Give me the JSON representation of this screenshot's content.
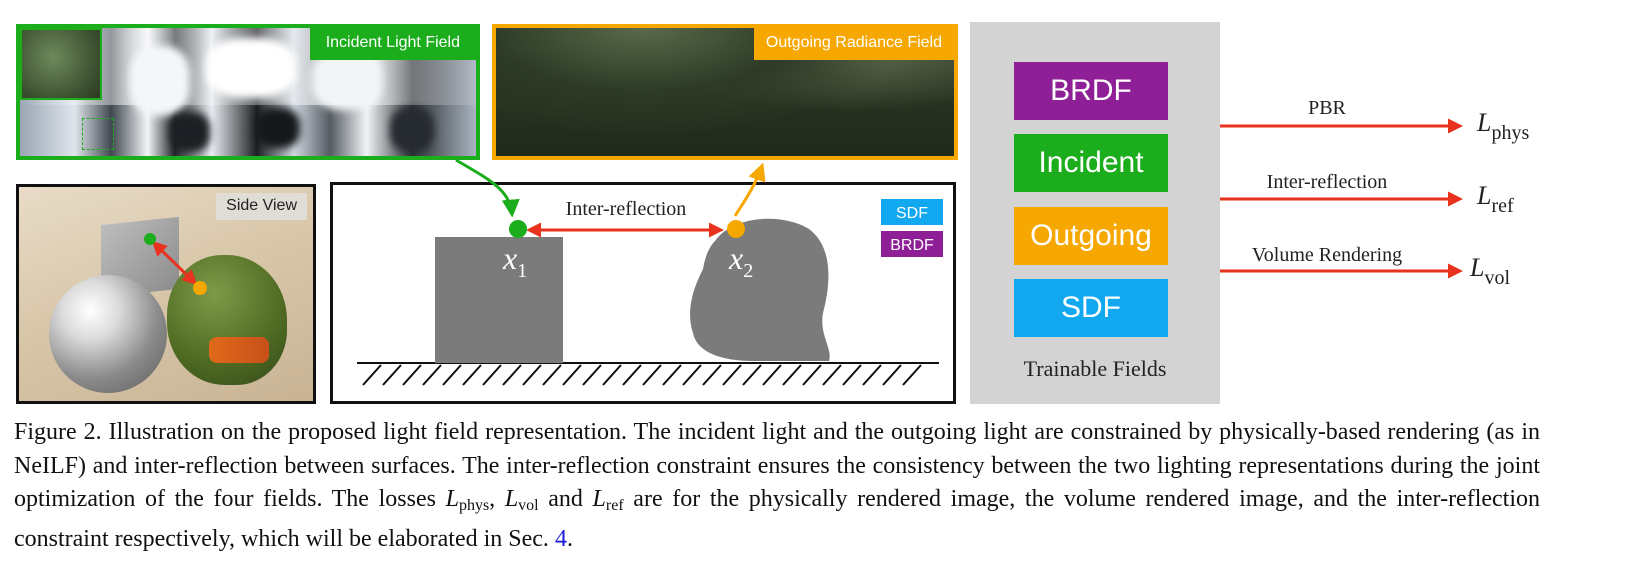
{
  "panels": {
    "incident": {
      "label": "Incident Light Field",
      "color": "#1cad1c"
    },
    "outgoing": {
      "label": "Outgoing Radiance Field",
      "color": "#f6a700"
    },
    "side_view": {
      "label": "Side View"
    }
  },
  "schematic": {
    "inter_reflection_label": "Inter-reflection",
    "x1": {
      "var": "x",
      "sub": "1"
    },
    "x2": {
      "var": "x",
      "sub": "2"
    },
    "legend": [
      {
        "label": "SDF",
        "color": "#12a8f0"
      },
      {
        "label": "BRDF",
        "color": "#8e1f96"
      }
    ]
  },
  "fields": {
    "boxes": [
      {
        "label": "BRDF",
        "color": "#8e1f96"
      },
      {
        "label": "Incident",
        "color": "#1cad1c"
      },
      {
        "label": "Outgoing",
        "color": "#f6a700"
      },
      {
        "label": "SDF",
        "color": "#12a8f0"
      }
    ],
    "caption": "Trainable Fields"
  },
  "losses": [
    {
      "edge_label": "PBR",
      "symbol": "L",
      "sub": "phys"
    },
    {
      "edge_label": "Inter-reflection",
      "symbol": "L",
      "sub": "ref"
    },
    {
      "edge_label": "Volume Rendering",
      "symbol": "L",
      "sub": "vol"
    }
  ],
  "arrow_color": "#e8321e",
  "caption": {
    "part1": "Figure 2. Illustration on the proposed light field representation.  The incident light and the outgoing light are constrained by physically-based rendering (as in NeILF) and inter-reflection between surfaces.  The inter-reflection constraint ensures the consistency between the two lighting representations during the joint optimization of the four fields. The losses ",
    "l_phys": "L",
    "l_phys_sub": "phys",
    "sep1": ", ",
    "l_vol": "L",
    "l_vol_sub": "vol",
    "sep2": " and ",
    "l_ref": "L",
    "l_ref_sub": "ref",
    "part2": " are for the physically rendered image, the volume rendered image, and the inter-reflection constraint respectively, which will be elaborated in Sec. ",
    "section_ref": "4",
    "part3": "."
  }
}
